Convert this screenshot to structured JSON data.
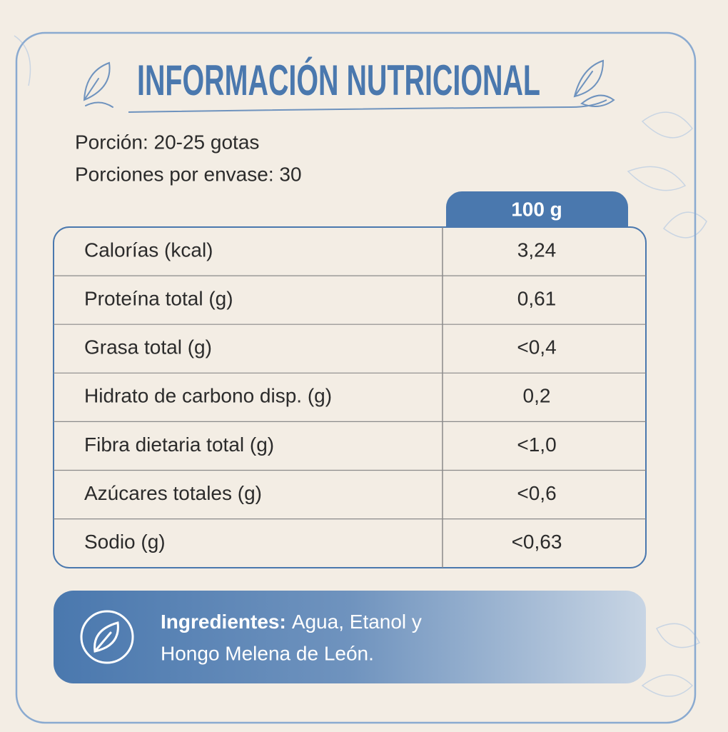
{
  "header": {
    "title": "INFORMACIÓN NUTRICIONAL"
  },
  "serving": [
    "Porción: 20-25 gotas",
    "Porciones por envase: 30"
  ],
  "table": {
    "column_header": "100 g",
    "rows": [
      [
        "Calorías (kcal)",
        "3,24"
      ],
      [
        "Proteína total (g)",
        "0,61"
      ],
      [
        "Grasa total (g)",
        "<0,4"
      ],
      [
        "Hidrato de carbono disp. (g)",
        "0,2"
      ],
      [
        "Fibra dietaria total (g)",
        "<1,0"
      ],
      [
        "Azúcares totales (g)",
        "<0,6"
      ],
      [
        "Sodio (g)",
        "<0,63"
      ]
    ]
  },
  "ingredients": {
    "label": "Ingredientes:",
    "lines": [
      "Agua, Etanol y",
      "Hongo Melena de León."
    ]
  }
}
